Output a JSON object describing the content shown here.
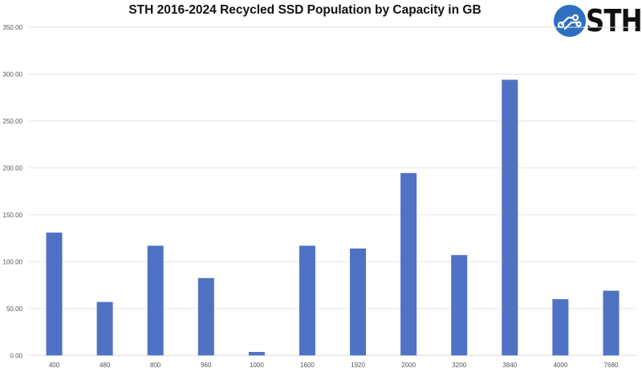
{
  "chart_data": {
    "type": "bar",
    "title": "STH 2016-2024 Recycled SSD Population by Capacity in GB",
    "xlabel": "",
    "ylabel": "",
    "categories": [
      "400",
      "480",
      "800",
      "960",
      "1000",
      "1600",
      "1920",
      "2000",
      "3200",
      "3840",
      "4000",
      "7680"
    ],
    "values": [
      131,
      57,
      117,
      82.5,
      3.7,
      117,
      114,
      194.5,
      107,
      294,
      60,
      69
    ],
    "ylim": [
      0,
      350
    ],
    "yticks": [
      0,
      50,
      100,
      150,
      200,
      250,
      300,
      350
    ],
    "ytick_labels": [
      "0.00",
      "50.00",
      "100.00",
      "150.00",
      "200.00",
      "250.00",
      "300.00",
      "350.00"
    ],
    "grid": true,
    "legend": "none",
    "bar_color": "#4f72c4"
  },
  "logo": {
    "text": "STH",
    "color": "#2f6fc0"
  }
}
